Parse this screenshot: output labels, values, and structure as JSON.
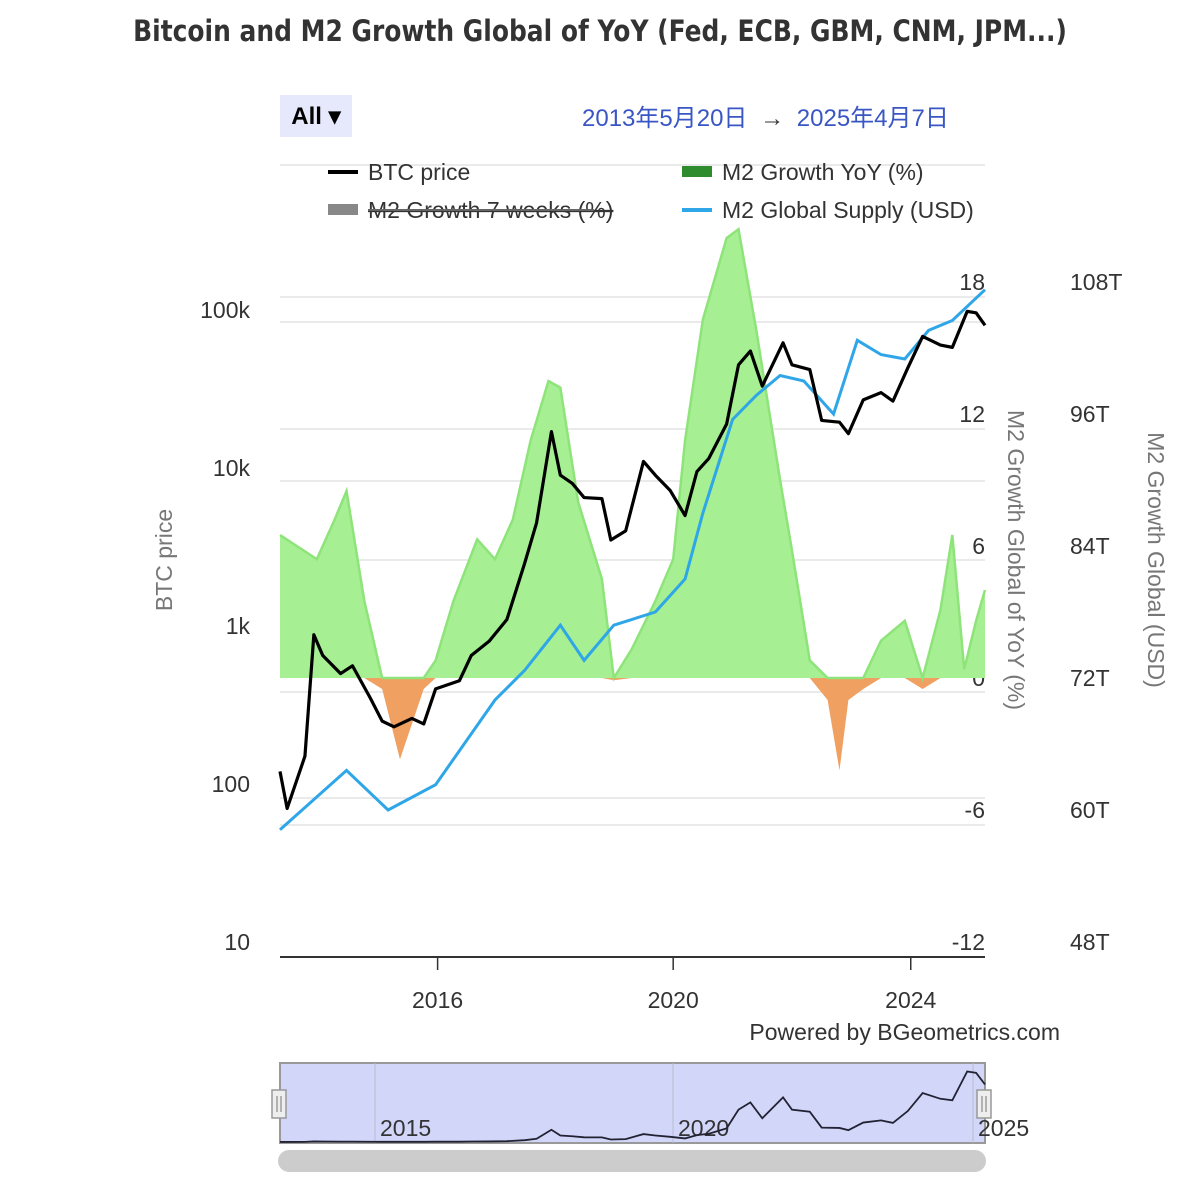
{
  "title": "Bitcoin and M2 Growth Global of YoY (Fed, ECB, GBM, CNM, JPM...)",
  "range_selector": {
    "label": "All ▾",
    "from": "2013年5月20日",
    "arrow": "→",
    "to": "2025年4月7日"
  },
  "credits": "Powered by BGeometrics.com",
  "chart_data": {
    "type": "line",
    "title": "Bitcoin and M2 Growth Global of YoY (Fed, ECB, GBM, CNM, JPM...)",
    "legend": [
      {
        "name": "BTC price",
        "color": "#000000",
        "visible": true
      },
      {
        "name": "M2 Growth YoY (%)",
        "color": "#2e8b2e",
        "visible": true
      },
      {
        "name": "M2 Growth 7 weeks (%)",
        "color": "#888888",
        "visible": false
      },
      {
        "name": "M2 Global Supply (USD)",
        "color": "#2fa6e8",
        "visible": true
      }
    ],
    "x_axis": {
      "ticks": [
        "2016",
        "2020",
        "2024"
      ],
      "range": [
        "2013-05-20",
        "2025-04-07"
      ]
    },
    "y_axes": [
      {
        "title": "BTC price",
        "scale": "log",
        "ticks": [
          "10",
          "100",
          "1k",
          "10k",
          "100k"
        ],
        "range": [
          10,
          100000
        ]
      },
      {
        "title": "M2 Growth Global of YoY (%)",
        "ticks": [
          "-12",
          "-6",
          "0",
          "6",
          "12",
          "18"
        ],
        "range": [
          -12,
          18
        ]
      },
      {
        "title": "M2 Growth Global (USD)",
        "ticks": [
          "48T",
          "60T",
          "72T",
          "84T",
          "96T",
          "108T"
        ],
        "range": [
          48,
          108
        ]
      }
    ],
    "colors": {
      "positive_fill": "#a6ef92",
      "positive_line": "#8ee47a",
      "negative_fill": "#f0a060",
      "btc": "#000000",
      "m2": "#2fa6e8"
    },
    "series": [
      {
        "name": "BTC price",
        "axis": 0,
        "points": [
          [
            2013.38,
            120
          ],
          [
            2013.5,
            70
          ],
          [
            2013.8,
            150
          ],
          [
            2013.95,
            880
          ],
          [
            2014.1,
            650
          ],
          [
            2014.4,
            500
          ],
          [
            2014.6,
            560
          ],
          [
            2014.9,
            350
          ],
          [
            2015.1,
            250
          ],
          [
            2015.3,
            230
          ],
          [
            2015.6,
            260
          ],
          [
            2015.8,
            240
          ],
          [
            2016.0,
            400
          ],
          [
            2016.4,
            450
          ],
          [
            2016.6,
            650
          ],
          [
            2016.9,
            800
          ],
          [
            2017.2,
            1100
          ],
          [
            2017.5,
            2500
          ],
          [
            2017.7,
            4500
          ],
          [
            2017.95,
            17000
          ],
          [
            2018.1,
            9000
          ],
          [
            2018.3,
            8000
          ],
          [
            2018.5,
            6500
          ],
          [
            2018.8,
            6400
          ],
          [
            2018.95,
            3500
          ],
          [
            2019.2,
            4000
          ],
          [
            2019.5,
            11000
          ],
          [
            2019.7,
            9000
          ],
          [
            2019.95,
            7200
          ],
          [
            2020.2,
            5000
          ],
          [
            2020.4,
            9500
          ],
          [
            2020.6,
            11500
          ],
          [
            2020.9,
            19000
          ],
          [
            2021.1,
            45000
          ],
          [
            2021.3,
            55000
          ],
          [
            2021.5,
            33000
          ],
          [
            2021.85,
            62000
          ],
          [
            2022.0,
            45000
          ],
          [
            2022.3,
            42000
          ],
          [
            2022.5,
            20000
          ],
          [
            2022.8,
            19500
          ],
          [
            2022.95,
            16500
          ],
          [
            2023.2,
            27000
          ],
          [
            2023.5,
            30000
          ],
          [
            2023.7,
            26500
          ],
          [
            2023.95,
            43000
          ],
          [
            2024.2,
            68000
          ],
          [
            2024.5,
            60000
          ],
          [
            2024.7,
            58000
          ],
          [
            2024.95,
            98000
          ],
          [
            2025.1,
            96000
          ],
          [
            2025.25,
            80000
          ]
        ]
      },
      {
        "name": "M2 Growth YoY (%)",
        "axis": 1,
        "points": [
          [
            2013.38,
            6.5
          ],
          [
            2014.0,
            5.4
          ],
          [
            2014.3,
            7.2
          ],
          [
            2014.5,
            8.5
          ],
          [
            2014.8,
            3.5
          ],
          [
            2015.1,
            -0.5
          ],
          [
            2015.4,
            -3.7
          ],
          [
            2015.8,
            -0.5
          ],
          [
            2016.0,
            0.8
          ],
          [
            2016.3,
            3.5
          ],
          [
            2016.7,
            6.3
          ],
          [
            2017.0,
            5.4
          ],
          [
            2017.3,
            7.2
          ],
          [
            2017.6,
            10.8
          ],
          [
            2017.9,
            13.5
          ],
          [
            2018.1,
            13.2
          ],
          [
            2018.4,
            8
          ],
          [
            2018.8,
            4.5
          ],
          [
            2019.0,
            -0.1
          ],
          [
            2019.3,
            1.3
          ],
          [
            2019.7,
            3.5
          ],
          [
            2020.0,
            5.4
          ],
          [
            2020.2,
            10.8
          ],
          [
            2020.5,
            16.3
          ],
          [
            2020.9,
            20
          ],
          [
            2021.1,
            20.4
          ],
          [
            2021.4,
            15.8
          ],
          [
            2021.8,
            9
          ],
          [
            2022.0,
            5.8
          ],
          [
            2022.3,
            0.8
          ],
          [
            2022.6,
            -1
          ],
          [
            2022.8,
            -4.2
          ],
          [
            2022.95,
            -1
          ],
          [
            2023.2,
            -0.5
          ],
          [
            2023.5,
            1.7
          ],
          [
            2023.9,
            2.6
          ],
          [
            2024.2,
            -0.5
          ],
          [
            2024.5,
            3.1
          ],
          [
            2024.7,
            6.5
          ],
          [
            2024.9,
            0.4
          ],
          [
            2025.1,
            2.6
          ],
          [
            2025.25,
            4
          ]
        ]
      },
      {
        "name": "M2 Global Supply (USD)",
        "axis": 2,
        "points": [
          [
            2013.38,
            58.2
          ],
          [
            2014.5,
            63.6
          ],
          [
            2015.2,
            60
          ],
          [
            2016.0,
            62.3
          ],
          [
            2017.0,
            70
          ],
          [
            2017.5,
            72.7
          ],
          [
            2018.1,
            76.8
          ],
          [
            2018.5,
            73.6
          ],
          [
            2019.0,
            76.8
          ],
          [
            2019.7,
            78
          ],
          [
            2020.2,
            81
          ],
          [
            2020.5,
            87
          ],
          [
            2021.0,
            95.5
          ],
          [
            2021.4,
            97.7
          ],
          [
            2021.8,
            99.5
          ],
          [
            2022.2,
            99
          ],
          [
            2022.7,
            96
          ],
          [
            2023.1,
            102.7
          ],
          [
            2023.5,
            101.4
          ],
          [
            2023.9,
            101
          ],
          [
            2024.3,
            103.6
          ],
          [
            2024.7,
            104.5
          ],
          [
            2025.25,
            107.3
          ]
        ]
      }
    ]
  },
  "navigator": {
    "ticks": [
      "2015",
      "2020",
      "2025"
    ]
  }
}
